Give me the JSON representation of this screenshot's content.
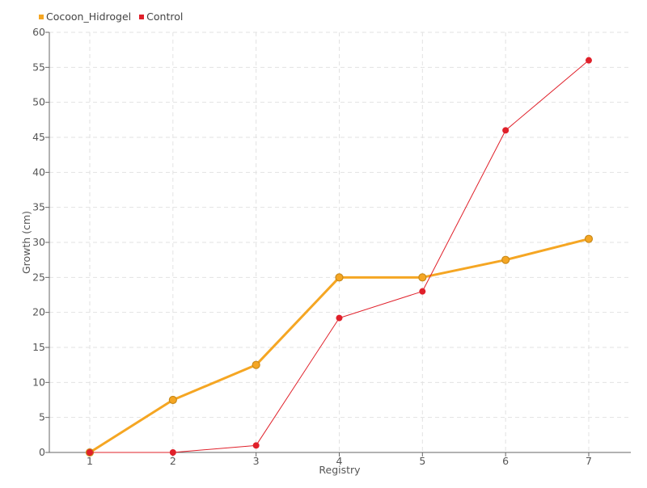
{
  "chart_data": {
    "type": "line",
    "xlabel": "Registry",
    "ylabel": "Growth (cm)",
    "categories": [
      "1",
      "2",
      "3",
      "4",
      "5",
      "6",
      "7"
    ],
    "ylim": [
      0,
      60
    ],
    "yticks": [
      0,
      5,
      10,
      15,
      20,
      25,
      30,
      35,
      40,
      45,
      50,
      55,
      60
    ],
    "grid": true,
    "legend_position": "top-left",
    "series": [
      {
        "name": "Cocoon_Hidrogel",
        "color": "#f5a623",
        "values": [
          0,
          7.5,
          12.5,
          25,
          25,
          27.5,
          30.5
        ]
      },
      {
        "name": "Control",
        "color": "#e0202a",
        "values": [
          0,
          0,
          1,
          19.2,
          23,
          46,
          56
        ]
      }
    ]
  }
}
